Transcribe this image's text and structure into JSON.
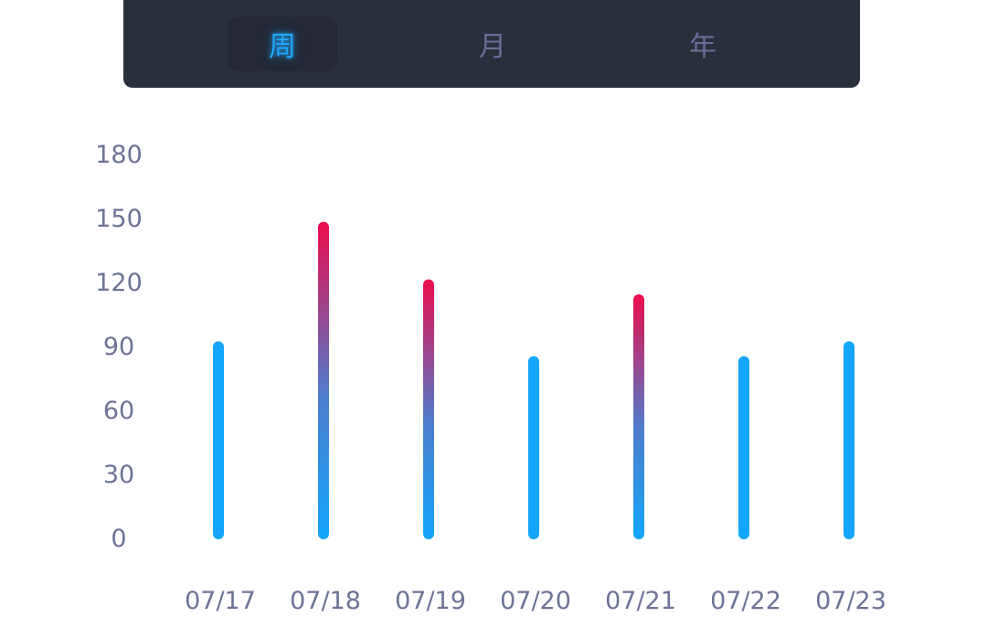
{
  "tabs": [
    {
      "label": "周",
      "active": true
    },
    {
      "label": "月",
      "active": false
    },
    {
      "label": "年",
      "active": false
    }
  ],
  "colors": {
    "accent": "#20a9ff",
    "bar_base": "#13a6fc",
    "bar_high": "#ec0c4c",
    "tab_background": "#2a2f3c",
    "axis_text": "#6e7397"
  },
  "chart_data": {
    "type": "bar",
    "categories": [
      "07/17",
      "07/18",
      "07/19",
      "07/20",
      "07/21",
      "07/22",
      "07/23"
    ],
    "values": [
      92,
      148,
      121,
      85,
      114,
      85,
      92
    ],
    "yticks": [
      0,
      30,
      60,
      90,
      120,
      150,
      180
    ],
    "ylim": [
      0,
      180
    ],
    "grid": false,
    "title": "",
    "xlabel": "",
    "ylabel": "",
    "gradient_bars": [
      "07/18",
      "07/19",
      "07/21"
    ]
  }
}
